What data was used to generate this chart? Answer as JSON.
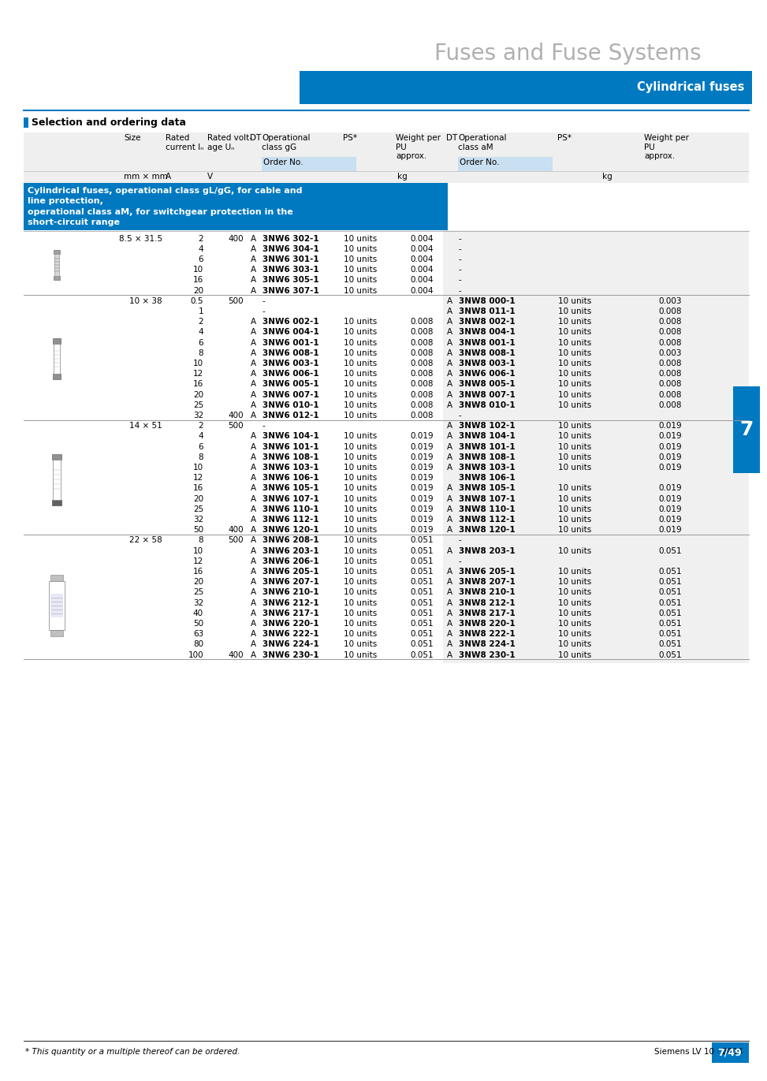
{
  "title": "Fuses and Fuse Systems",
  "subtitle": "Cylindrical fuses",
  "section_title": "Selection and ordering data",
  "page_num": "7/49",
  "chapter_num": "7",
  "footer_text": "* This quantity or a multiple thereof can be ordered.",
  "footer_right": "Siemens LV 10 · 2004",
  "blue_color": "#0079C1",
  "light_blue_bg": "#DDEEFF",
  "light_gray_bg": "#EFEFEF",
  "mid_gray_bg": "#E0E0E0",
  "blue_desc": "Cylindrical fuses, operational class gL/gG, for cable and\nline protection,\noperational class aM, for switchgear protection in the\nshort-circuit range",
  "table_rows": [
    {
      "size": "8.5 × 31.5",
      "current": "2",
      "voltage": "400",
      "dt": "A",
      "order_gG": "3NW6 302-1",
      "ps_gG": "10 units",
      "weight_gG": "0.004",
      "dt_aM": "",
      "order_aM": "-",
      "ps_aM": "",
      "weight_aM": ""
    },
    {
      "size": "",
      "current": "4",
      "voltage": "",
      "dt": "A",
      "order_gG": "3NW6 304-1",
      "ps_gG": "10 units",
      "weight_gG": "0.004",
      "dt_aM": "",
      "order_aM": "-",
      "ps_aM": "",
      "weight_aM": ""
    },
    {
      "size": "",
      "current": "6",
      "voltage": "",
      "dt": "A",
      "order_gG": "3NW6 301-1",
      "ps_gG": "10 units",
      "weight_gG": "0.004",
      "dt_aM": "",
      "order_aM": "-",
      "ps_aM": "",
      "weight_aM": ""
    },
    {
      "size": "",
      "current": "10",
      "voltage": "",
      "dt": "A",
      "order_gG": "3NW6 303-1",
      "ps_gG": "10 units",
      "weight_gG": "0.004",
      "dt_aM": "",
      "order_aM": "-",
      "ps_aM": "",
      "weight_aM": ""
    },
    {
      "size": "",
      "current": "16",
      "voltage": "",
      "dt": "A",
      "order_gG": "3NW6 305-1",
      "ps_gG": "10 units",
      "weight_gG": "0.004",
      "dt_aM": "",
      "order_aM": "-",
      "ps_aM": "",
      "weight_aM": ""
    },
    {
      "size": "",
      "current": "20",
      "voltage": "",
      "dt": "A",
      "order_gG": "3NW6 307-1",
      "ps_gG": "10 units",
      "weight_gG": "0.004",
      "dt_aM": "",
      "order_aM": "-",
      "ps_aM": "",
      "weight_aM": ""
    },
    {
      "size": "10 × 38",
      "current": "0.5",
      "voltage": "500",
      "dt": "",
      "order_gG": "-",
      "ps_gG": "",
      "weight_gG": "",
      "dt_aM": "A",
      "order_aM": "3NW8 000-1",
      "ps_aM": "10 units",
      "weight_aM": "0.003"
    },
    {
      "size": "",
      "current": "1",
      "voltage": "",
      "dt": "",
      "order_gG": "-",
      "ps_gG": "",
      "weight_gG": "",
      "dt_aM": "A",
      "order_aM": "3NW8 011-1",
      "ps_aM": "10 units",
      "weight_aM": "0.008"
    },
    {
      "size": "",
      "current": "2",
      "voltage": "",
      "dt": "A",
      "order_gG": "3NW6 002-1",
      "ps_gG": "10 units",
      "weight_gG": "0.008",
      "dt_aM": "A",
      "order_aM": "3NW8 002-1",
      "ps_aM": "10 units",
      "weight_aM": "0.008"
    },
    {
      "size": "",
      "current": "4",
      "voltage": "",
      "dt": "A",
      "order_gG": "3NW6 004-1",
      "ps_gG": "10 units",
      "weight_gG": "0.008",
      "dt_aM": "A",
      "order_aM": "3NW8 004-1",
      "ps_aM": "10 units",
      "weight_aM": "0.008"
    },
    {
      "size": "",
      "current": "6",
      "voltage": "",
      "dt": "A",
      "order_gG": "3NW6 001-1",
      "ps_gG": "10 units",
      "weight_gG": "0.008",
      "dt_aM": "A",
      "order_aM": "3NW8 001-1",
      "ps_aM": "10 units",
      "weight_aM": "0.008"
    },
    {
      "size": "",
      "current": "8",
      "voltage": "",
      "dt": "A",
      "order_gG": "3NW6 008-1",
      "ps_gG": "10 units",
      "weight_gG": "0.008",
      "dt_aM": "A",
      "order_aM": "3NW8 008-1",
      "ps_aM": "10 units",
      "weight_aM": "0.003"
    },
    {
      "size": "",
      "current": "10",
      "voltage": "",
      "dt": "A",
      "order_gG": "3NW6 003-1",
      "ps_gG": "10 units",
      "weight_gG": "0.008",
      "dt_aM": "A",
      "order_aM": "3NW8 003-1",
      "ps_aM": "10 units",
      "weight_aM": "0.008"
    },
    {
      "size": "",
      "current": "12",
      "voltage": "",
      "dt": "A",
      "order_gG": "3NW6 006-1",
      "ps_gG": "10 units",
      "weight_gG": "0.008",
      "dt_aM": "A",
      "order_aM": "3NW6 006-1",
      "ps_aM": "10 units",
      "weight_aM": "0.008"
    },
    {
      "size": "",
      "current": "16",
      "voltage": "",
      "dt": "A",
      "order_gG": "3NW6 005-1",
      "ps_gG": "10 units",
      "weight_gG": "0.008",
      "dt_aM": "A",
      "order_aM": "3NW8 005-1",
      "ps_aM": "10 units",
      "weight_aM": "0.008"
    },
    {
      "size": "",
      "current": "20",
      "voltage": "",
      "dt": "A",
      "order_gG": "3NW6 007-1",
      "ps_gG": "10 units",
      "weight_gG": "0.008",
      "dt_aM": "A",
      "order_aM": "3NW8 007-1",
      "ps_aM": "10 units",
      "weight_aM": "0.008"
    },
    {
      "size": "",
      "current": "25",
      "voltage": "",
      "dt": "A",
      "order_gG": "3NW6 010-1",
      "ps_gG": "10 units",
      "weight_gG": "0.008",
      "dt_aM": "A",
      "order_aM": "3NW8 010-1",
      "ps_aM": "10 units",
      "weight_aM": "0.008"
    },
    {
      "size": "",
      "current": "32",
      "voltage": "400",
      "dt": "A",
      "order_gG": "3NW6 012-1",
      "ps_gG": "10 units",
      "weight_gG": "0.008",
      "dt_aM": "",
      "order_aM": "-",
      "ps_aM": "",
      "weight_aM": ""
    },
    {
      "size": "14 × 51",
      "current": "2",
      "voltage": "500",
      "dt": "",
      "order_gG": "-",
      "ps_gG": "",
      "weight_gG": "",
      "dt_aM": "A",
      "order_aM": "3NW8 102-1",
      "ps_aM": "10 units",
      "weight_aM": "0.019"
    },
    {
      "size": "",
      "current": "4",
      "voltage": "",
      "dt": "A",
      "order_gG": "3NW6 104-1",
      "ps_gG": "10 units",
      "weight_gG": "0.019",
      "dt_aM": "A",
      "order_aM": "3NW8 104-1",
      "ps_aM": "10 units",
      "weight_aM": "0.019"
    },
    {
      "size": "",
      "current": "6",
      "voltage": "",
      "dt": "A",
      "order_gG": "3NW6 101-1",
      "ps_gG": "10 units",
      "weight_gG": "0.019",
      "dt_aM": "A",
      "order_aM": "3NW8 101-1",
      "ps_aM": "10 units",
      "weight_aM": "0.019"
    },
    {
      "size": "",
      "current": "8",
      "voltage": "",
      "dt": "A",
      "order_gG": "3NW6 108-1",
      "ps_gG": "10 units",
      "weight_gG": "0.019",
      "dt_aM": "A",
      "order_aM": "3NW8 108-1",
      "ps_aM": "10 units",
      "weight_aM": "0.019"
    },
    {
      "size": "",
      "current": "10",
      "voltage": "",
      "dt": "A",
      "order_gG": "3NW6 103-1",
      "ps_gG": "10 units",
      "weight_gG": "0.019",
      "dt_aM": "A",
      "order_aM": "3NW8 103-1",
      "ps_aM": "10 units",
      "weight_aM": "0.019"
    },
    {
      "size": "",
      "current": "12",
      "voltage": "",
      "dt": "A",
      "order_gG": "3NW6 106-1",
      "ps_gG": "10 units",
      "weight_gG": "0.019",
      "dt_aM": "",
      "order_aM": "3NW8 106-1",
      "ps_aM": "",
      "weight_aM": ""
    },
    {
      "size": "",
      "current": "16",
      "voltage": "",
      "dt": "A",
      "order_gG": "3NW6 105-1",
      "ps_gG": "10 units",
      "weight_gG": "0.019",
      "dt_aM": "A",
      "order_aM": "3NW8 105-1",
      "ps_aM": "10 units",
      "weight_aM": "0.019"
    },
    {
      "size": "",
      "current": "20",
      "voltage": "",
      "dt": "A",
      "order_gG": "3NW6 107-1",
      "ps_gG": "10 units",
      "weight_gG": "0.019",
      "dt_aM": "A",
      "order_aM": "3NW8 107-1",
      "ps_aM": "10 units",
      "weight_aM": "0.019"
    },
    {
      "size": "",
      "current": "25",
      "voltage": "",
      "dt": "A",
      "order_gG": "3NW6 110-1",
      "ps_gG": "10 units",
      "weight_gG": "0.019",
      "dt_aM": "A",
      "order_aM": "3NW8 110-1",
      "ps_aM": "10 units",
      "weight_aM": "0.019"
    },
    {
      "size": "",
      "current": "32",
      "voltage": "",
      "dt": "A",
      "order_gG": "3NW6 112-1",
      "ps_gG": "10 units",
      "weight_gG": "0.019",
      "dt_aM": "A",
      "order_aM": "3NW8 112-1",
      "ps_aM": "10 units",
      "weight_aM": "0.019"
    },
    {
      "size": "",
      "current": "50",
      "voltage": "400",
      "dt": "A",
      "order_gG": "3NW6 120-1",
      "ps_gG": "10 units",
      "weight_gG": "0.019",
      "dt_aM": "A",
      "order_aM": "3NW8 120-1",
      "ps_aM": "10 units",
      "weight_aM": "0.019"
    },
    {
      "size": "22 × 58",
      "current": "8",
      "voltage": "500",
      "dt": "A",
      "order_gG": "3NW6 208-1",
      "ps_gG": "10 units",
      "weight_gG": "0.051",
      "dt_aM": "",
      "order_aM": "-",
      "ps_aM": "",
      "weight_aM": ""
    },
    {
      "size": "",
      "current": "10",
      "voltage": "",
      "dt": "A",
      "order_gG": "3NW6 203-1",
      "ps_gG": "10 units",
      "weight_gG": "0.051",
      "dt_aM": "A",
      "order_aM": "3NW8 203-1",
      "ps_aM": "10 units",
      "weight_aM": "0.051"
    },
    {
      "size": "",
      "current": "12",
      "voltage": "",
      "dt": "A",
      "order_gG": "3NW6 206-1",
      "ps_gG": "10 units",
      "weight_gG": "0.051",
      "dt_aM": "",
      "order_aM": "-",
      "ps_aM": "",
      "weight_aM": ""
    },
    {
      "size": "",
      "current": "16",
      "voltage": "",
      "dt": "A",
      "order_gG": "3NW6 205-1",
      "ps_gG": "10 units",
      "weight_gG": "0.051",
      "dt_aM": "A",
      "order_aM": "3NW6 205-1",
      "ps_aM": "10 units",
      "weight_aM": "0.051"
    },
    {
      "size": "",
      "current": "20",
      "voltage": "",
      "dt": "A",
      "order_gG": "3NW6 207-1",
      "ps_gG": "10 units",
      "weight_gG": "0.051",
      "dt_aM": "A",
      "order_aM": "3NW8 207-1",
      "ps_aM": "10 units",
      "weight_aM": "0.051"
    },
    {
      "size": "",
      "current": "25",
      "voltage": "",
      "dt": "A",
      "order_gG": "3NW6 210-1",
      "ps_gG": "10 units",
      "weight_gG": "0.051",
      "dt_aM": "A",
      "order_aM": "3NW8 210-1",
      "ps_aM": "10 units",
      "weight_aM": "0.051"
    },
    {
      "size": "",
      "current": "32",
      "voltage": "",
      "dt": "A",
      "order_gG": "3NW6 212-1",
      "ps_gG": "10 units",
      "weight_gG": "0.051",
      "dt_aM": "A",
      "order_aM": "3NW8 212-1",
      "ps_aM": "10 units",
      "weight_aM": "0.051"
    },
    {
      "size": "",
      "current": "40",
      "voltage": "",
      "dt": "A",
      "order_gG": "3NW6 217-1",
      "ps_gG": "10 units",
      "weight_gG": "0.051",
      "dt_aM": "A",
      "order_aM": "3NW8 217-1",
      "ps_aM": "10 units",
      "weight_aM": "0.051"
    },
    {
      "size": "",
      "current": "50",
      "voltage": "",
      "dt": "A",
      "order_gG": "3NW6 220-1",
      "ps_gG": "10 units",
      "weight_gG": "0.051",
      "dt_aM": "A",
      "order_aM": "3NW8 220-1",
      "ps_aM": "10 units",
      "weight_aM": "0.051"
    },
    {
      "size": "",
      "current": "63",
      "voltage": "",
      "dt": "A",
      "order_gG": "3NW6 222-1",
      "ps_gG": "10 units",
      "weight_gG": "0.051",
      "dt_aM": "A",
      "order_aM": "3NW8 222-1",
      "ps_aM": "10 units",
      "weight_aM": "0.051"
    },
    {
      "size": "",
      "current": "80",
      "voltage": "",
      "dt": "A",
      "order_gG": "3NW6 224-1",
      "ps_gG": "10 units",
      "weight_gG": "0.051",
      "dt_aM": "A",
      "order_aM": "3NW8 224-1",
      "ps_aM": "10 units",
      "weight_aM": "0.051"
    },
    {
      "size": "",
      "current": "100",
      "voltage": "400",
      "dt": "A",
      "order_gG": "3NW6 230-1",
      "ps_gG": "10 units",
      "weight_gG": "0.051",
      "dt_aM": "A",
      "order_aM": "3NW8 230-1",
      "ps_aM": "10 units",
      "weight_aM": "0.051"
    }
  ]
}
